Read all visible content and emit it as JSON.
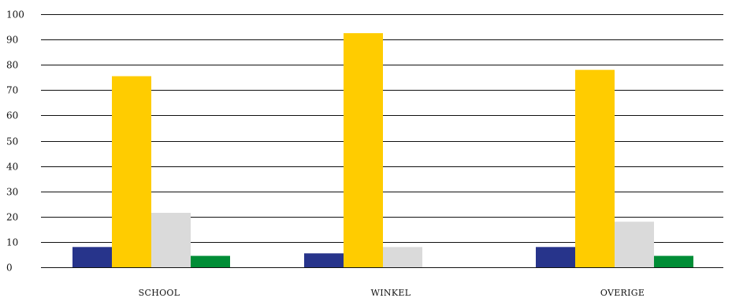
{
  "chart_data": {
    "type": "bar",
    "title": "",
    "xlabel": "",
    "ylabel": "",
    "categories": [
      "SCHOOL",
      "WINKEL",
      "OVERIGE"
    ],
    "series": [
      {
        "color": "#27348b",
        "values": [
          8,
          5.5,
          8
        ]
      },
      {
        "color": "#ffcc00",
        "values": [
          75.5,
          92.5,
          78
        ]
      },
      {
        "color": "#dadada",
        "values": [
          21.5,
          8,
          18
        ]
      },
      {
        "color": "#008d36",
        "values": [
          4.5,
          null,
          4.5
        ]
      }
    ],
    "ylim": [
      0,
      100
    ],
    "yticks": [
      0,
      10,
      20,
      30,
      40,
      50,
      60,
      70,
      80,
      90,
      100
    ],
    "grid": true,
    "legend": "none"
  }
}
